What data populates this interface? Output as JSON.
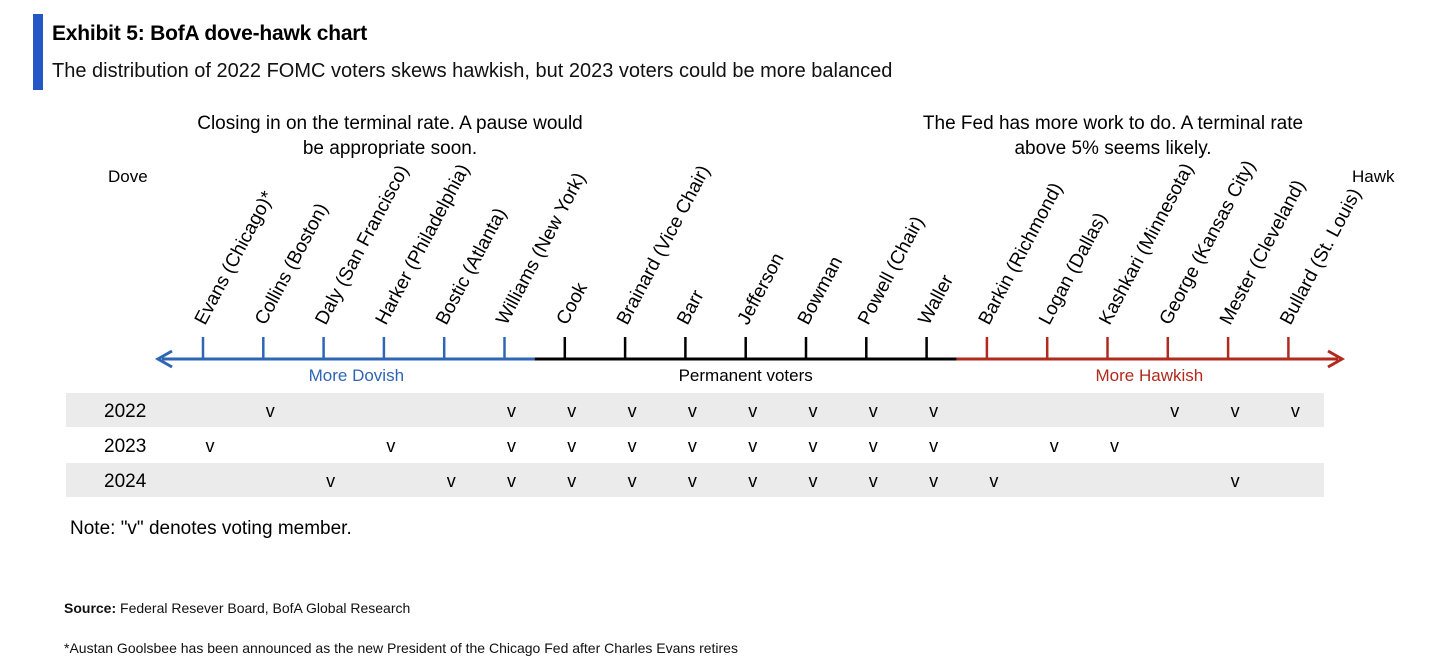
{
  "header": {
    "title": "Exhibit 5: BofA dove-hawk chart",
    "subtitle": "The distribution of 2022 FOMC voters skews hawkish, but 2023 voters could be more balanced"
  },
  "chart_data": {
    "type": "table",
    "annotations": {
      "left_line1": "Closing in on the terminal rate. A pause would",
      "left_line2": "be appropriate soon.",
      "right_line1": "The Fed has more work to do. A terminal rate",
      "right_line2": "above 5% seems likely.",
      "dove": "Dove",
      "hawk": "Hawk"
    },
    "segments": [
      {
        "label": "More Dovish",
        "color": "#2e66b5"
      },
      {
        "label": "Permanent voters",
        "color": "#000000"
      },
      {
        "label": "More Hawkish",
        "color": "#b02a1e"
      }
    ],
    "members": [
      {
        "name": "Evans (Chicago)*",
        "group": 0
      },
      {
        "name": "Collins (Boston)",
        "group": 0
      },
      {
        "name": "Daly (San Francisco)",
        "group": 0
      },
      {
        "name": "Harker (Philadelphia)",
        "group": 0
      },
      {
        "name": "Bostic (Atlanta)",
        "group": 0
      },
      {
        "name": "Williams (New York)",
        "group": 0
      },
      {
        "name": "Cook",
        "group": 1
      },
      {
        "name": "Brainard (Vice Chair)",
        "group": 1
      },
      {
        "name": "Barr",
        "group": 1
      },
      {
        "name": "Jefferson",
        "group": 1
      },
      {
        "name": "Bowman",
        "group": 1
      },
      {
        "name": "Powell (Chair)",
        "group": 1
      },
      {
        "name": "Waller",
        "group": 1
      },
      {
        "name": "Barkin (Richmond)",
        "group": 2
      },
      {
        "name": "Logan (Dallas)",
        "group": 2
      },
      {
        "name": "Kashkari (Minnesota)",
        "group": 2
      },
      {
        "name": "George (Kansas City)",
        "group": 2
      },
      {
        "name": "Mester (Cleveland)",
        "group": 2
      },
      {
        "name": "Bullard (St. Louis)",
        "group": 2
      }
    ],
    "vote_mark": "v",
    "years": [
      {
        "year": "2022",
        "voters": [
          1,
          5,
          6,
          7,
          8,
          9,
          10,
          11,
          12,
          16,
          17,
          18
        ]
      },
      {
        "year": "2023",
        "voters": [
          0,
          3,
          5,
          6,
          7,
          8,
          9,
          10,
          11,
          12,
          14,
          15
        ]
      },
      {
        "year": "2024",
        "voters": [
          2,
          4,
          5,
          6,
          7,
          8,
          9,
          10,
          11,
          12,
          13,
          17
        ]
      }
    ]
  },
  "footer": {
    "note": "Note: \"v\" denotes voting member.",
    "source_label": "Source:",
    "source_text": " Federal Resever Board, BofA Global Research",
    "footnote": "*Austan Goolsbee has been announced as the new President of the Chicago Fed after Charles Evans retires"
  }
}
